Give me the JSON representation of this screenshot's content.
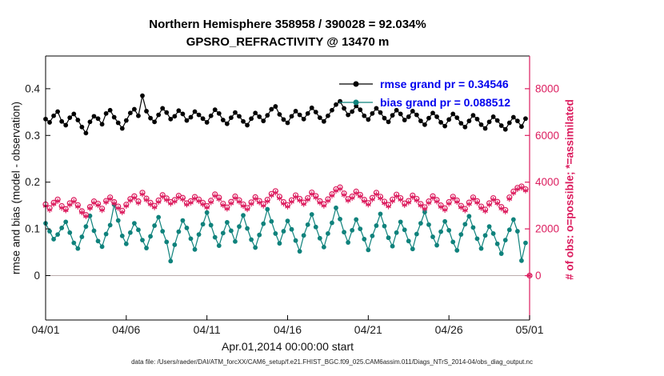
{
  "caption": "data file: /Users/raeder/DAI/ATM_forcXX/CAM6_setup/f.e21.FHIST_BGC.f09_025.CAM6assim.011/Diags_NTrS_2014-04/obs_diag_output.nc",
  "colors": {
    "crimson": "#dc1c5e",
    "teal": "#0f827c",
    "black": "#000000",
    "legend_text": "#0000ee",
    "zero_line": "#bbaeae",
    "axis": "#000000",
    "tick_text": "#1a1a1a"
  },
  "chart_data": {
    "type": "line",
    "title_line1": "Northern Hemisphere 358958 / 390028 = 92.034%",
    "title_line2": "GPSRO_REFRACTIVITY @ 13470 m",
    "xlabel": "Apr.01,2014 00:00:00 start",
    "ylabel_left": "rmse and bias (model - observation)",
    "ylabel_right": "# of obs: o=possible; *=assimilated",
    "x_tick_labels": [
      "04/01",
      "04/06",
      "04/11",
      "04/16",
      "04/21",
      "04/26",
      "05/01"
    ],
    "x_tick_days": [
      0,
      5,
      10,
      15,
      20,
      25,
      30
    ],
    "left_tick_labels": [
      "0",
      "0.1",
      "0.2",
      "0.3",
      "0.4"
    ],
    "left_tick_values": [
      0,
      0.1,
      0.2,
      0.3,
      0.4
    ],
    "right_tick_labels": [
      "0",
      "2000",
      "4000",
      "6000",
      "8000"
    ],
    "right_tick_values": [
      0,
      2000,
      4000,
      6000,
      8000
    ],
    "left_ylim": [
      -0.095,
      0.47
    ],
    "x_range_days": [
      0,
      30
    ],
    "right_axis_scale_per_left_unit": 20000,
    "time_step_days": 0.25,
    "grid": false,
    "legend_position": "top-right-inside",
    "series": [
      {
        "name": "rmse",
        "legend": "rmse grand pr = 0.34546",
        "color": "#000000",
        "marker": "filled-circle",
        "line": true,
        "axis": "left",
        "values": [
          0.335,
          0.328,
          0.342,
          0.351,
          0.33,
          0.322,
          0.338,
          0.346,
          0.333,
          0.318,
          0.305,
          0.329,
          0.341,
          0.336,
          0.324,
          0.347,
          0.354,
          0.339,
          0.327,
          0.315,
          0.332,
          0.348,
          0.356,
          0.342,
          0.385,
          0.352,
          0.337,
          0.329,
          0.344,
          0.358,
          0.349,
          0.335,
          0.341,
          0.353,
          0.346,
          0.332,
          0.339,
          0.351,
          0.344,
          0.336,
          0.328,
          0.342,
          0.355,
          0.347,
          0.333,
          0.325,
          0.338,
          0.349,
          0.341,
          0.33,
          0.322,
          0.336,
          0.348,
          0.34,
          0.331,
          0.343,
          0.356,
          0.362,
          0.345,
          0.334,
          0.327,
          0.341,
          0.352,
          0.344,
          0.335,
          0.347,
          0.359,
          0.35,
          0.338,
          0.33,
          0.342,
          0.354,
          0.366,
          0.373,
          0.358,
          0.344,
          0.351,
          0.363,
          0.355,
          0.342,
          0.334,
          0.347,
          0.358,
          0.349,
          0.337,
          0.329,
          0.343,
          0.354,
          0.346,
          0.333,
          0.34,
          0.352,
          0.344,
          0.331,
          0.323,
          0.337,
          0.348,
          0.34,
          0.328,
          0.32,
          0.334,
          0.346,
          0.338,
          0.326,
          0.318,
          0.331,
          0.343,
          0.335,
          0.323,
          0.315,
          0.329,
          0.34,
          0.332,
          0.321,
          0.313,
          0.327,
          0.339,
          0.331,
          0.319,
          0.336
        ]
      },
      {
        "name": "bias",
        "legend": "bias grand pr = 0.088512",
        "color": "#0f827c",
        "marker": "filled-circle",
        "line": true,
        "axis": "left",
        "values": [
          0.112,
          0.095,
          0.078,
          0.088,
          0.102,
          0.115,
          0.092,
          0.07,
          0.058,
          0.083,
          0.105,
          0.128,
          0.096,
          0.074,
          0.062,
          0.089,
          0.108,
          0.152,
          0.118,
          0.085,
          0.068,
          0.092,
          0.112,
          0.098,
          0.076,
          0.059,
          0.084,
          0.107,
          0.125,
          0.095,
          0.072,
          0.031,
          0.066,
          0.094,
          0.118,
          0.102,
          0.079,
          0.056,
          0.088,
          0.11,
          0.135,
          0.108,
          0.082,
          0.064,
          0.091,
          0.114,
          0.096,
          0.073,
          0.105,
          0.129,
          0.101,
          0.077,
          0.06,
          0.087,
          0.111,
          0.142,
          0.116,
          0.09,
          0.069,
          0.095,
          0.117,
          0.099,
          0.075,
          0.052,
          0.086,
          0.109,
          0.131,
          0.104,
          0.08,
          0.061,
          0.09,
          0.113,
          0.145,
          0.121,
          0.093,
          0.071,
          0.097,
          0.12,
          0.1,
          0.078,
          0.055,
          0.085,
          0.107,
          0.132,
          0.106,
          0.081,
          0.063,
          0.092,
          0.115,
          0.098,
          0.074,
          0.057,
          0.089,
          0.112,
          0.136,
          0.109,
          0.083,
          0.065,
          0.094,
          0.116,
          0.097,
          0.072,
          0.054,
          0.088,
          0.11,
          0.127,
          0.103,
          0.079,
          0.058,
          0.086,
          0.105,
          0.09,
          0.068,
          0.047,
          0.076,
          0.098,
          0.12,
          0.095,
          0.032,
          0.07
        ]
      },
      {
        "name": "possible",
        "color": "#dc1c5e",
        "marker": "open-circle",
        "line": false,
        "axis": "right",
        "values": [
          3050,
          2890,
          3120,
          3260,
          2980,
          2850,
          3100,
          3240,
          3020,
          2760,
          2600,
          2940,
          3180,
          3080,
          2870,
          3200,
          3350,
          3150,
          2960,
          2780,
          3040,
          3280,
          3400,
          3180,
          3550,
          3300,
          3120,
          2990,
          3220,
          3450,
          3310,
          3150,
          3240,
          3420,
          3330,
          3100,
          3190,
          3370,
          3260,
          3120,
          2980,
          3210,
          3480,
          3340,
          3080,
          2920,
          3160,
          3390,
          3230,
          3050,
          2900,
          3140,
          3360,
          3200,
          3060,
          3250,
          3500,
          3620,
          3380,
          3150,
          3020,
          3230,
          3440,
          3290,
          3130,
          3320,
          3560,
          3410,
          3190,
          3060,
          3270,
          3490,
          3700,
          3780,
          3520,
          3280,
          3390,
          3600,
          3460,
          3250,
          3110,
          3330,
          3550,
          3380,
          3170,
          3030,
          3260,
          3470,
          3320,
          3090,
          3200,
          3430,
          3290,
          3070,
          2930,
          3180,
          3400,
          3240,
          3010,
          2880,
          3150,
          3380,
          3220,
          2990,
          2860,
          3130,
          3350,
          3190,
          2960,
          2830,
          3100,
          3320,
          3160,
          2940,
          2810,
          3350,
          3600,
          3760,
          3820,
          3700,
          0
        ]
      },
      {
        "name": "assimilated",
        "color": "#dc1c5e",
        "marker": "asterisk",
        "line": false,
        "axis": "right",
        "values": [
          2980,
          2810,
          3060,
          3190,
          2900,
          2790,
          3030,
          3170,
          2950,
          2700,
          2540,
          2880,
          3110,
          3010,
          2800,
          3140,
          3280,
          3090,
          2890,
          2710,
          2980,
          3210,
          3330,
          3110,
          3480,
          3240,
          3050,
          2920,
          3150,
          3380,
          3240,
          3080,
          3170,
          3350,
          3260,
          3040,
          3120,
          3300,
          3190,
          3050,
          2910,
          3140,
          3410,
          3270,
          3010,
          2860,
          3090,
          3320,
          3160,
          2980,
          2840,
          3070,
          3290,
          3130,
          2990,
          3180,
          3430,
          3550,
          3310,
          3080,
          2950,
          3160,
          3370,
          3220,
          3060,
          3250,
          3490,
          3340,
          3120,
          2990,
          3200,
          3420,
          3630,
          3710,
          3450,
          3210,
          3320,
          3530,
          3390,
          3180,
          3040,
          3260,
          3480,
          3310,
          3100,
          2960,
          3190,
          3400,
          3250,
          3020,
          3130,
          3360,
          3220,
          3000,
          2860,
          3110,
          3330,
          3170,
          2940,
          2810,
          3080,
          3310,
          3150,
          2920,
          2790,
          3060,
          3280,
          3120,
          2890,
          2760,
          3030,
          3250,
          3090,
          2870,
          2740,
          3280,
          3530,
          3700,
          3760,
          3640,
          0
        ]
      }
    ]
  }
}
